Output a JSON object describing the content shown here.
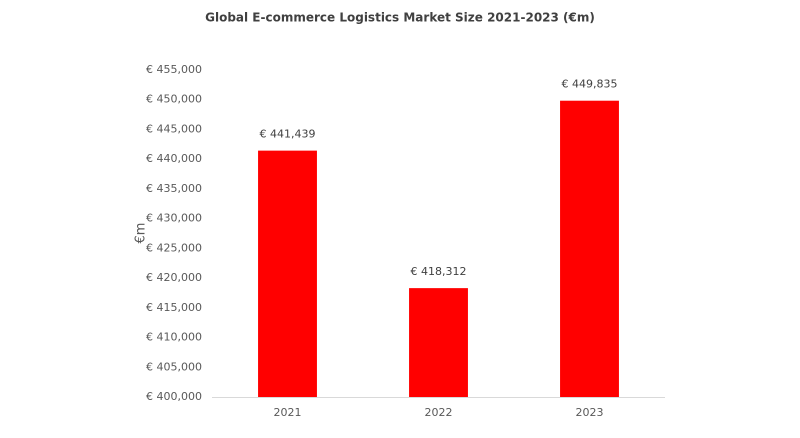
{
  "chart_data": {
    "type": "bar",
    "title": "Global E-commerce Logistics Market Size 2021-2023 (€m)",
    "y_label": "€m",
    "categories": [
      "2021",
      "2022",
      "2023"
    ],
    "values": [
      441439,
      418312,
      449835
    ],
    "value_labels": [
      "€ 441,439",
      "€ 418,312",
      "€ 449,835"
    ],
    "color": "#ff0000",
    "ylim": [
      400000,
      455000
    ],
    "yticks": [
      {
        "value": 400000,
        "label": "€ 400,000"
      },
      {
        "value": 405000,
        "label": "€ 405,000"
      },
      {
        "value": 410000,
        "label": "€ 410,000"
      },
      {
        "value": 415000,
        "label": "€ 415,000"
      },
      {
        "value": 420000,
        "label": "€ 420,000"
      },
      {
        "value": 425000,
        "label": "€ 425,000"
      },
      {
        "value": 430000,
        "label": "€ 430,000"
      },
      {
        "value": 435000,
        "label": "€ 435,000"
      },
      {
        "value": 440000,
        "label": "€ 440,000"
      },
      {
        "value": 445000,
        "label": "€ 445,000"
      },
      {
        "value": 450000,
        "label": "€ 450,000"
      },
      {
        "value": 455000,
        "label": "€ 455,000"
      }
    ],
    "grid": false
  }
}
